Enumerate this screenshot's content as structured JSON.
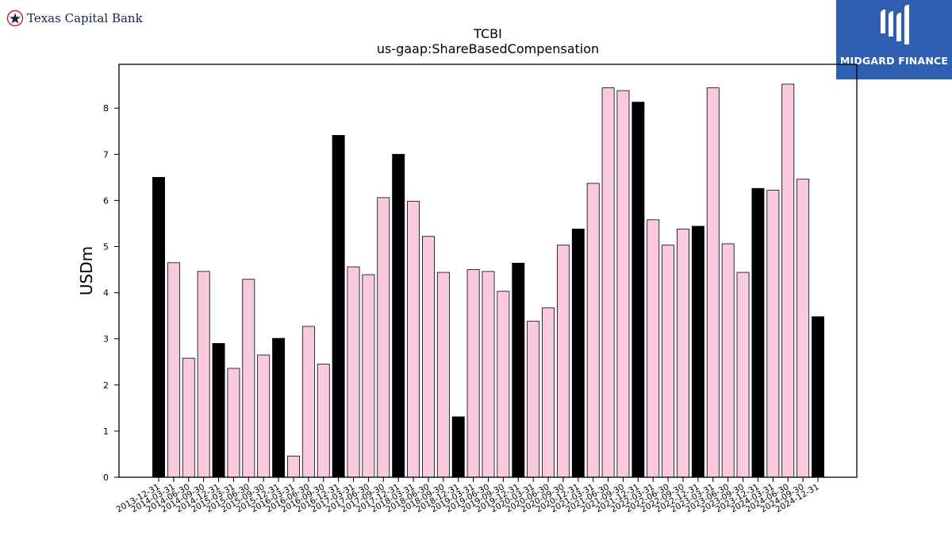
{
  "branding": {
    "company_logo_text": "Texas Capital Bank",
    "partner_logo_text": "MIDGARD FINANCE",
    "partner_color": "#2e5fb0"
  },
  "chart_data": {
    "type": "bar",
    "title": "TCBI",
    "subtitle": "us-gaap:ShareBasedCompensation",
    "xlabel": "",
    "ylabel": "USDm",
    "ylim": [
      0,
      8.95
    ],
    "yticks": [
      0,
      1,
      2,
      3,
      4,
      5,
      6,
      7,
      8
    ],
    "grid": false,
    "colors": {
      "annual": "#000000",
      "quarterly": "#f9c9df",
      "edge": "#000000"
    },
    "categories": [
      "2013-12-31",
      "2014-03-31",
      "2014-06-30",
      "2014-09-30",
      "2014-12-31",
      "2015-03-31",
      "2015-06-30",
      "2015-09-30",
      "2015-12-31",
      "2016-03-31",
      "2016-06-30",
      "2016-09-30",
      "2016-12-31",
      "2017-03-31",
      "2017-06-30",
      "2017-09-30",
      "2017-12-31",
      "2018-03-31",
      "2018-06-30",
      "2018-09-30",
      "2018-12-31",
      "2019-03-31",
      "2019-06-30",
      "2019-09-30",
      "2019-12-31",
      "2020-03-31",
      "2020-06-30",
      "2020-09-30",
      "2020-12-31",
      "2021-03-31",
      "2021-06-30",
      "2021-09-30",
      "2021-12-31",
      "2022-03-31",
      "2022-06-30",
      "2022-09-30",
      "2022-12-31",
      "2023-03-31",
      "2023-06-30",
      "2023-09-30",
      "2023-12-31",
      "2024-03-31",
      "2024-06-30",
      "2024-09-30",
      "2024-12-31"
    ],
    "values": [
      6.5,
      4.65,
      2.58,
      4.46,
      2.9,
      2.36,
      4.29,
      2.65,
      3.01,
      0.46,
      3.27,
      2.45,
      7.41,
      4.56,
      4.39,
      6.06,
      7.0,
      5.98,
      5.22,
      4.44,
      1.31,
      4.5,
      4.46,
      4.03,
      4.64,
      3.38,
      3.67,
      5.03,
      5.38,
      6.37,
      8.44,
      8.38,
      8.13,
      5.58,
      5.03,
      5.38,
      5.44,
      8.44,
      5.06,
      4.44,
      6.26,
      6.22,
      8.52,
      6.46,
      3.48
    ],
    "annual": [
      true,
      false,
      false,
      false,
      true,
      false,
      false,
      false,
      true,
      false,
      false,
      false,
      true,
      false,
      false,
      false,
      true,
      false,
      false,
      false,
      true,
      false,
      false,
      false,
      true,
      false,
      false,
      false,
      true,
      false,
      false,
      false,
      true,
      false,
      false,
      false,
      true,
      false,
      false,
      false,
      true,
      false,
      false,
      false,
      true
    ]
  }
}
